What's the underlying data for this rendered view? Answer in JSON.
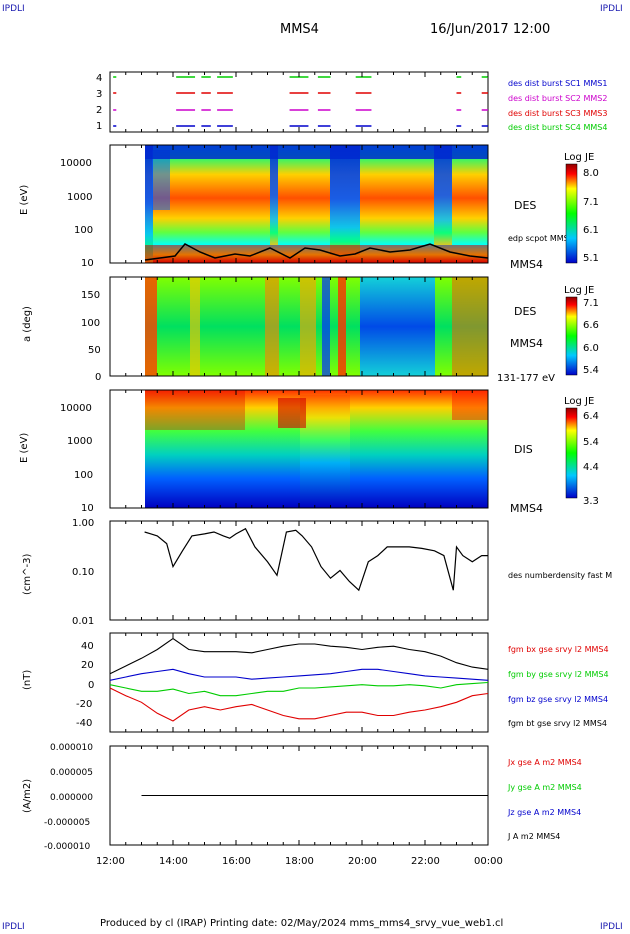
{
  "corners": {
    "top_left": "IPDLI",
    "top_right": "IPDLI",
    "bottom_left": "IPDLI",
    "bottom_right": "IPDLI"
  },
  "header": {
    "spacecraft": "MMS4",
    "date_time": "16/Jun/2017 12:00"
  },
  "footer": {
    "text": "Produced by cl (IRAP)   Printing date: 02/May/2024   mms_mms4_srvy_vue_web1.cl"
  },
  "colors": {
    "red": "#e00000",
    "green": "#00cc00",
    "blue": "#0000cc",
    "magenta": "#cc00cc",
    "black": "#000000",
    "navy": "#0000a0"
  },
  "x_axis": {
    "ticks": [
      "12:00",
      "14:00",
      "16:00",
      "18:00",
      "20:00",
      "22:00",
      "00:00"
    ]
  },
  "chart_data": [
    {
      "type": "timeline",
      "panel": "burst",
      "y_ticks": [
        "4",
        "3",
        "2",
        "1"
      ],
      "legend": [
        {
          "label": "des dist burst SC1 MMS1",
          "color": "#0000cc"
        },
        {
          "label": "des dist burst SC2 MMS2",
          "color": "#cc00cc"
        },
        {
          "label": "des dist burst SC3 MMS3",
          "color": "#e00000"
        },
        {
          "label": "des dist burst SC4 MMS4",
          "color": "#00cc00"
        }
      ],
      "intervals_hours": [
        [
          12.1,
          12.2
        ],
        [
          14.1,
          14.7
        ],
        [
          14.9,
          15.2
        ],
        [
          15.4,
          15.9
        ],
        [
          17.7,
          18.3
        ],
        [
          18.6,
          19.0
        ],
        [
          19.8,
          20.3
        ],
        [
          23.0,
          23.15
        ],
        [
          23.8,
          24.0
        ]
      ]
    },
    {
      "type": "heatmap",
      "panel": "des_energy",
      "ylabel": "E (eV)",
      "y_ticks": [
        "10000",
        "1000",
        "100",
        "10"
      ],
      "side_labels": [
        "DES",
        "edp scpot MMS4",
        "MMS4"
      ],
      "colorbar": {
        "title": "Log JE",
        "ticks": [
          "8.0",
          "7.1",
          "6.1",
          "5.1"
        ],
        "range": [
          5.1,
          8.0
        ]
      }
    },
    {
      "type": "heatmap",
      "panel": "des_pitch",
      "ylabel": "a (deg)",
      "y_ticks": [
        "150",
        "100",
        "50",
        "0"
      ],
      "side_labels": [
        "DES",
        "MMS4",
        "131-177 eV"
      ],
      "colorbar": {
        "title": "Log JE",
        "ticks": [
          "7.1",
          "6.6",
          "6.0",
          "5.4"
        ],
        "range": [
          5.4,
          7.1
        ]
      }
    },
    {
      "type": "heatmap",
      "panel": "dis_energy",
      "ylabel": "E (eV)",
      "y_ticks": [
        "10000",
        "1000",
        "100",
        "10"
      ],
      "side_labels": [
        "DIS",
        "MMS4"
      ],
      "colorbar": {
        "title": "Log JE",
        "ticks": [
          "6.4",
          "5.4",
          "4.4",
          "3.3"
        ],
        "range": [
          3.3,
          6.4
        ]
      }
    },
    {
      "type": "line",
      "panel": "density",
      "ylabel": "(cm^-3)",
      "y_ticks": [
        "1.00",
        "0.10",
        "0.01"
      ],
      "ylim": [
        0.01,
        1.0
      ],
      "log_scale": true,
      "series": [
        {
          "name": "des numberdensity fast M",
          "color": "#000000",
          "x": [
            13.1,
            13.3,
            13.5,
            13.8,
            14.0,
            14.3,
            14.6,
            15.0,
            15.3,
            15.6,
            15.8,
            16.0,
            16.3,
            16.6,
            17.0,
            17.3,
            17.6,
            17.9,
            18.1,
            18.4,
            18.7,
            19.0,
            19.3,
            19.6,
            19.9,
            20.2,
            20.5,
            20.8,
            21.1,
            21.5,
            21.9,
            22.3,
            22.6,
            22.9,
            23.0,
            23.2,
            23.5,
            23.8,
            24.0
          ],
          "y": [
            0.6,
            0.55,
            0.5,
            0.35,
            0.12,
            0.25,
            0.5,
            0.55,
            0.6,
            0.5,
            0.45,
            0.55,
            0.7,
            0.3,
            0.15,
            0.08,
            0.6,
            0.65,
            0.5,
            0.3,
            0.12,
            0.07,
            0.1,
            0.06,
            0.04,
            0.15,
            0.2,
            0.3,
            0.3,
            0.3,
            0.28,
            0.25,
            0.2,
            0.04,
            0.3,
            0.2,
            0.15,
            0.2,
            0.2
          ]
        }
      ]
    },
    {
      "type": "line",
      "panel": "magnetic_field",
      "ylabel": "(nT)",
      "y_ticks": [
        "40",
        "20",
        "0",
        "-20",
        "-40"
      ],
      "ylim": [
        -45,
        45
      ],
      "series": [
        {
          "name": "fgm bx gse srvy l2 MMS4",
          "color": "#e00000",
          "x": [
            12.0,
            12.5,
            13.0,
            13.5,
            14.0,
            14.5,
            15.0,
            15.5,
            16.0,
            16.5,
            17.0,
            17.5,
            18.0,
            18.5,
            19.0,
            19.5,
            20.0,
            20.5,
            21.0,
            21.5,
            22.0,
            22.5,
            23.0,
            23.5,
            24.0
          ],
          "y": [
            -5,
            -12,
            -18,
            -28,
            -35,
            -25,
            -22,
            -25,
            -22,
            -20,
            -25,
            -30,
            -33,
            -33,
            -30,
            -27,
            -27,
            -30,
            -30,
            -27,
            -25,
            -22,
            -18,
            -12,
            -10
          ]
        },
        {
          "name": "fgm by gse srvy l2 MMS4",
          "color": "#00cc00",
          "x": [
            12.0,
            12.5,
            13.0,
            13.5,
            14.0,
            14.5,
            15.0,
            15.5,
            16.0,
            16.5,
            17.0,
            17.5,
            18.0,
            18.5,
            19.0,
            19.5,
            20.0,
            20.5,
            21.0,
            21.5,
            22.0,
            22.5,
            23.0,
            23.5,
            24.0
          ],
          "y": [
            -2,
            -5,
            -8,
            -8,
            -6,
            -10,
            -8,
            -12,
            -12,
            -10,
            -8,
            -8,
            -5,
            -5,
            -4,
            -3,
            -2,
            -3,
            -3,
            -2,
            -3,
            -5,
            -2,
            -1,
            0
          ]
        },
        {
          "name": "fgm bz gse srvy l2 MMS4",
          "color": "#0000cc",
          "x": [
            12.0,
            12.5,
            13.0,
            13.5,
            14.0,
            14.5,
            15.0,
            15.5,
            16.0,
            16.5,
            17.0,
            17.5,
            18.0,
            18.5,
            19.0,
            19.5,
            20.0,
            20.5,
            21.0,
            21.5,
            22.0,
            22.5,
            23.0,
            23.5,
            24.0
          ],
          "y": [
            2,
            5,
            8,
            10,
            12,
            8,
            5,
            5,
            5,
            3,
            4,
            5,
            6,
            7,
            8,
            10,
            12,
            12,
            10,
            8,
            6,
            5,
            4,
            3,
            2
          ]
        },
        {
          "name": "fgm bt gse srvy l2 MMS4",
          "color": "#000000",
          "x": [
            12.0,
            12.5,
            13.0,
            13.5,
            14.0,
            14.5,
            15.0,
            15.5,
            16.0,
            16.5,
            17.0,
            17.5,
            18.0,
            18.5,
            19.0,
            19.5,
            20.0,
            20.5,
            21.0,
            21.5,
            22.0,
            22.5,
            23.0,
            23.5,
            24.0
          ],
          "y": [
            8,
            15,
            22,
            30,
            40,
            30,
            28,
            28,
            28,
            27,
            30,
            33,
            35,
            35,
            33,
            32,
            30,
            32,
            33,
            30,
            28,
            24,
            18,
            14,
            12
          ]
        }
      ]
    },
    {
      "type": "line",
      "panel": "current_density",
      "ylabel": "(A/m2)",
      "y_ticks": [
        "0.000010",
        "0.000005",
        "0.000000",
        "-0.000005",
        "-0.000010"
      ],
      "ylim": [
        -1e-05,
        1e-05
      ],
      "series": [
        {
          "name": "Jx gse A m2 MMS4",
          "color": "#e00000",
          "x": [
            13.0,
            24.0
          ],
          "y": [
            0,
            0
          ]
        },
        {
          "name": "Jy gse A m2 MMS4",
          "color": "#00cc00",
          "x": [
            13.0,
            24.0
          ],
          "y": [
            0,
            0
          ]
        },
        {
          "name": "Jz gse A m2 MMS4",
          "color": "#0000cc",
          "x": [
            13.0,
            24.0
          ],
          "y": [
            0,
            0
          ]
        },
        {
          "name": "J A m2 MMS4",
          "color": "#000000",
          "x": [
            13.0,
            24.0
          ],
          "y": [
            0,
            0
          ]
        }
      ]
    }
  ]
}
